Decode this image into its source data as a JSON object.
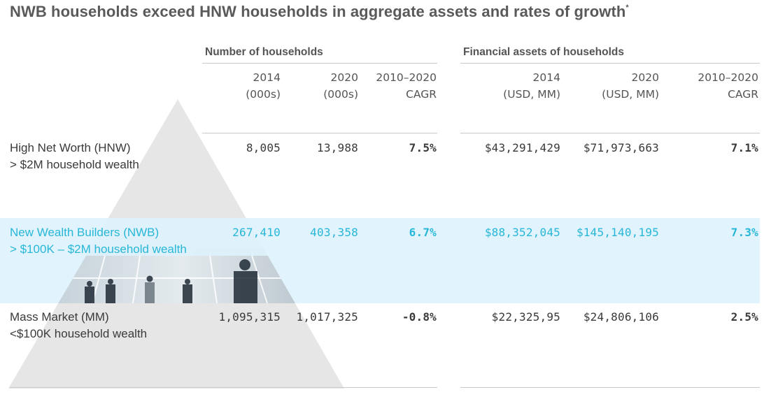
{
  "title": "NWB households exceed HNW households in aggregate assets and rates of growth",
  "title_footnote_mark": "*",
  "chart_data": {
    "type": "table",
    "groups": [
      {
        "name": "Number of households",
        "columns": [
          {
            "line1": "2014",
            "line2": "(000s)"
          },
          {
            "line1": "2020",
            "line2": "(000s)"
          },
          {
            "line1": "2010–2020",
            "line2": "CAGR"
          }
        ]
      },
      {
        "name": "Financial assets of households",
        "columns": [
          {
            "line1": "2014",
            "line2": "(USD, MM)"
          },
          {
            "line1": "2020",
            "line2": "(USD, MM)"
          },
          {
            "line1": "2010–2020",
            "line2": "CAGR"
          }
        ]
      }
    ],
    "rows": [
      {
        "name": "High Net Worth (HNW)",
        "sub": "> $2M household wealth",
        "households_2014": "8,005",
        "households_2020": "13,988",
        "households_cagr": "7.5%",
        "assets_2014": "$43,291,429",
        "assets_2020": "$71,973,663",
        "assets_cagr": "7.1%",
        "highlight": false
      },
      {
        "name": "New Wealth Builders (NWB)",
        "sub": "> $100K – $2M household wealth",
        "households_2014": "267,410",
        "households_2020": "403,358",
        "households_cagr": "6.7%",
        "assets_2014": "$88,352,045",
        "assets_2020": "$145,140,195",
        "assets_cagr": "7.3%",
        "highlight": true
      },
      {
        "name": "Mass Market (MM)",
        "sub": "<$100K household wealth",
        "households_2014": "1,095,315",
        "households_2020": "1,017,325",
        "households_cagr": "-0.8%",
        "assets_2014": "$22,325,95",
        "assets_2020": "$24,806,106",
        "assets_cagr": "2.5%",
        "highlight": false
      }
    ]
  },
  "colors": {
    "highlight_text": "#27b7d8",
    "highlight_band": "#def2fc",
    "pyramid": "#e6e6e6"
  }
}
